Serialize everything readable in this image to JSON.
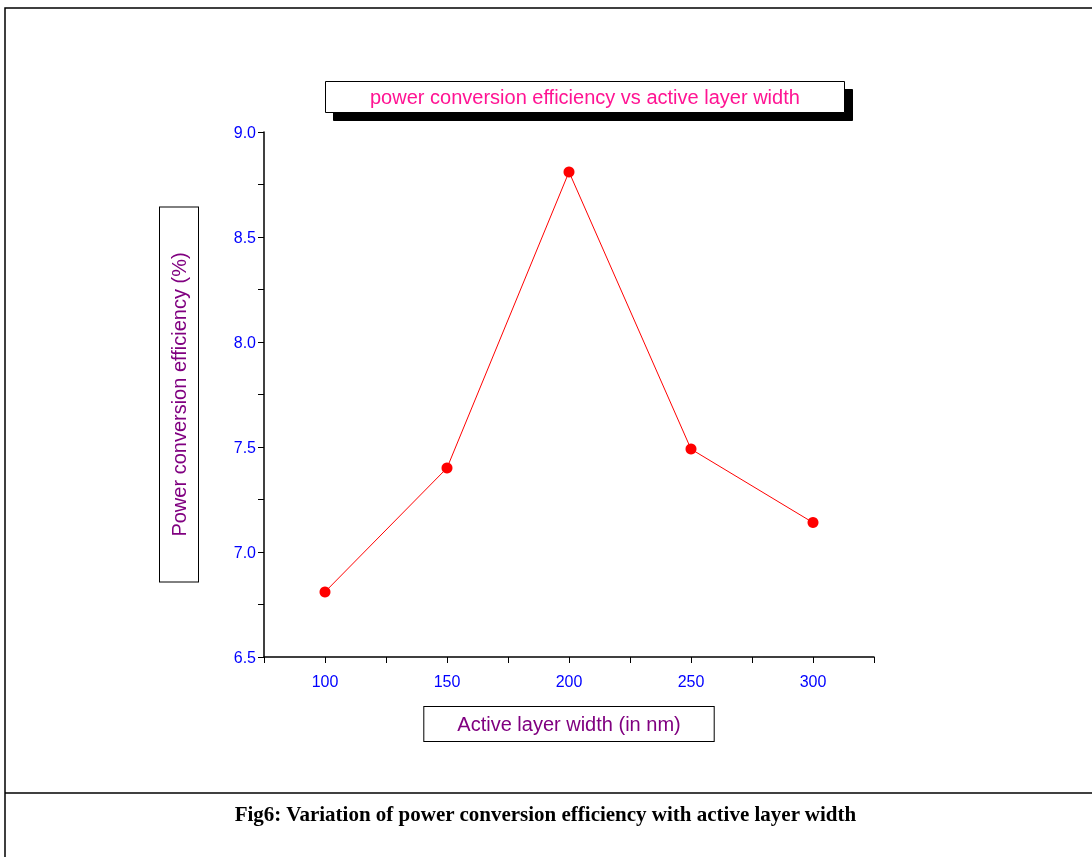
{
  "chart_data": {
    "type": "line",
    "title": "power conversion efficiency vs active layer width",
    "xlabel": "Active layer width (in nm)",
    "ylabel": "Power conversion efficiency (%)",
    "x": [
      100,
      150,
      200,
      250,
      300
    ],
    "series": [
      {
        "color": "#ff0000",
        "values": [
          6.81,
          7.4,
          8.81,
          7.49,
          7.14
        ]
      }
    ],
    "xlim": [
      75,
      325
    ],
    "xticks": [
      {
        "value": 75,
        "label": null
      },
      100,
      {
        "value": 125,
        "label": null
      },
      150,
      {
        "value": 175,
        "label": null
      },
      200,
      {
        "value": 225,
        "label": null
      },
      250,
      {
        "value": 275,
        "label": null
      },
      300,
      {
        "value": 325,
        "label": null
      }
    ],
    "ylim": [
      6.5,
      9.0
    ],
    "yticks": [
      {
        "value": 6.5,
        "label": "6.5"
      },
      {
        "value": 6.75,
        "label": null
      },
      {
        "value": 7,
        "label": "7.0"
      },
      {
        "value": 7.25,
        "label": null
      },
      {
        "value": 7.5,
        "label": "7.5"
      },
      {
        "value": 7.75,
        "label": null
      },
      {
        "value": 8,
        "label": "8.0"
      },
      {
        "value": 8.25,
        "label": null
      },
      {
        "value": 8.5,
        "label": "8.5"
      },
      {
        "value": 8.75,
        "label": null
      },
      {
        "value": 9,
        "label": "9.0"
      }
    ],
    "marker": "circle",
    "line_style": "solid",
    "annotations": [
      "Fig6: Variation of power conversion efficiency with active layer width"
    ]
  }
}
